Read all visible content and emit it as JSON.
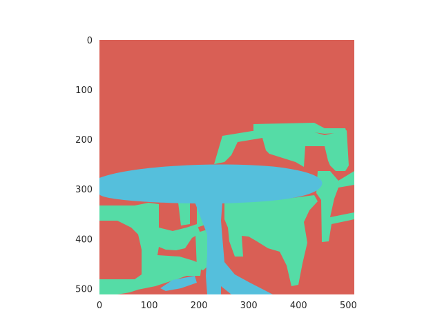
{
  "chart_data": {
    "type": "heatmap",
    "title": "",
    "xlabel": "",
    "ylabel": "",
    "xlim": [
      0,
      512
    ],
    "ylim": [
      512,
      0
    ],
    "y_inverted": true,
    "grid": false,
    "x_ticks": [
      0,
      100,
      200,
      300,
      400,
      500
    ],
    "y_ticks": [
      0,
      100,
      200,
      300,
      400,
      500
    ],
    "x_tick_labels": [
      "0",
      "100",
      "200",
      "300",
      "400",
      "500"
    ],
    "y_tick_labels": [
      "0",
      "100",
      "200",
      "300",
      "400",
      "500"
    ],
    "classes": [
      {
        "id": 0,
        "color": "#d95f55"
      },
      {
        "id": 1,
        "color": "#55dca6"
      },
      {
        "id": 2,
        "color": "#55bfdc"
      }
    ],
    "background_class": 0,
    "regions": [
      {
        "class": 1,
        "polygon": [
          [
            248,
            247
          ],
          [
            245,
            257
          ],
          [
            260,
            255
          ]
        ]
      },
      {
        "class": 1,
        "polygon": [
          [
            248,
            247
          ],
          [
            245,
            257
          ],
          [
            260,
            255
          ]
        ]
      },
      {
        "class": 1,
        "polygon": [
          [
            297,
            247
          ],
          [
            302,
            247
          ],
          [
            302,
            253
          ]
        ]
      },
      {
        "class": 1,
        "polygon": [
          [
            248,
            247
          ],
          [
            245,
            257
          ],
          [
            260,
            255
          ]
        ]
      },
      {
        "class": 1,
        "polygon": [
          [
            248,
            247
          ],
          [
            245,
            257
          ],
          [
            260,
            255
          ]
        ]
      }
    ]
  }
}
